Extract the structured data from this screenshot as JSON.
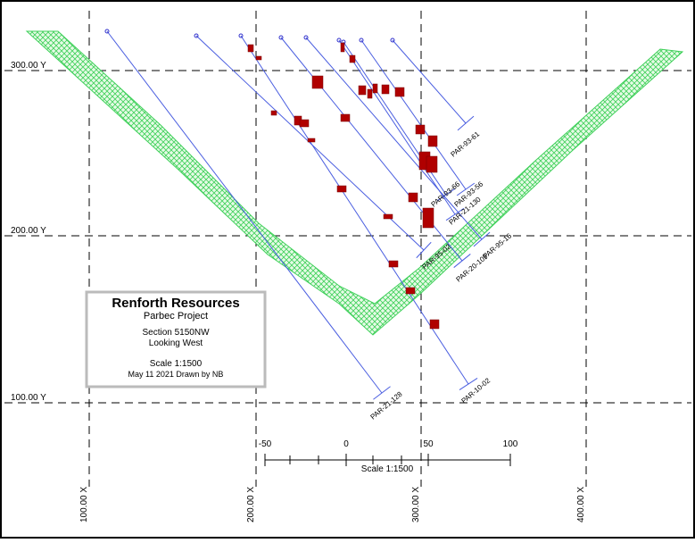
{
  "grid": {
    "y_labels": [
      "300.00 Y",
      "200.00 Y",
      "100.00 Y"
    ],
    "x_labels": [
      "100.00 X",
      "200.00 X",
      "300.00 X",
      "400.00 X"
    ]
  },
  "holes": [
    "PAR-21-128",
    "PAR-95-02",
    "PAR-10-02",
    "PAR-20-109",
    "PAR-95-16",
    "PAR-21-130",
    "PAR-93-66",
    "PAR-93-56",
    "PAR-93-61"
  ],
  "legend": {
    "title": "Renforth Resources",
    "project": "Parbec Project",
    "section": "Section 5150NW",
    "view": "Looking West",
    "scale": "Scale 1:1500",
    "date": "May 11 2021 Drawn by NB"
  },
  "scale_bar": {
    "ticks": [
      "-50",
      "0",
      "50",
      "100"
    ],
    "label": "Scale 1:1500"
  }
}
